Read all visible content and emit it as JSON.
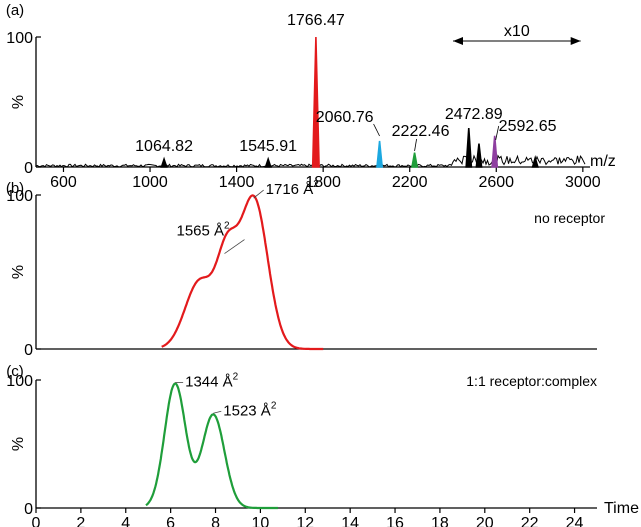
{
  "chart_data": [
    {
      "panel_label": "(a)",
      "type": "line",
      "title": "",
      "xlabel": "m/z",
      "ylabel": "%",
      "xlim": [
        510,
        3010
      ],
      "ylim": [
        0,
        100
      ],
      "x_ticks": [
        "600",
        "1000",
        "1400",
        "1800",
        "2200",
        "2600",
        "3000"
      ],
      "y_ticks": [
        "0",
        "100"
      ],
      "baseline_noise": 3,
      "zoom_annotation": {
        "label": "x10",
        "x_start": 2400,
        "x_end": 2990
      },
      "series": [
        {
          "color": "#000000",
          "peaks": [
            {
              "x": 1064.82,
              "y": 6,
              "label": "1064.82"
            },
            {
              "x": 1545.91,
              "y": 6,
              "label": "1545.91"
            },
            {
              "x": 2472.89,
              "y": 30,
              "label": "2472.89"
            },
            {
              "x": 2520,
              "y": 18
            },
            {
              "x": 2780,
              "y": 7
            }
          ]
        },
        {
          "color": "#e31a1c",
          "peaks": [
            {
              "x": 1766.47,
              "y": 100,
              "label": "1766.47"
            }
          ]
        },
        {
          "color": "#1ca8e0",
          "peaks": [
            {
              "x": 2060.76,
              "y": 20,
              "label": "2060.76"
            }
          ]
        },
        {
          "color": "#1f9e3a",
          "peaks": [
            {
              "x": 2222.46,
              "y": 11,
              "label": "2222.46"
            }
          ]
        },
        {
          "color": "#8e3fa0",
          "peaks": [
            {
              "x": 2592.65,
              "y": 24,
              "label": "2592.65"
            }
          ]
        }
      ]
    },
    {
      "panel_label": "(b)",
      "type": "line",
      "title": "no receptor",
      "xlabel": "",
      "ylabel": "%",
      "xlim": [
        0,
        25
      ],
      "ylim": [
        0,
        100
      ],
      "y_ticks": [
        "0",
        "100"
      ],
      "series": [
        {
          "color": "#e31a1c",
          "x_range": [
            5.6,
            12.8
          ],
          "components": [
            {
              "center": 7.3,
              "height": 44,
              "width": 0.65
            },
            {
              "center": 8.5,
              "height": 52,
              "width": 0.45
            },
            {
              "center": 9.7,
              "height": 98,
              "width": 0.62
            }
          ],
          "annotations": [
            {
              "x": 8.4,
              "y": 62,
              "label": "1565 Å",
              "sup": "2"
            },
            {
              "x": 9.7,
              "y": 98,
              "label": "1716 Å",
              "sup": "2"
            }
          ]
        }
      ]
    },
    {
      "panel_label": "(c)",
      "type": "line",
      "title": "1:1 receptor:complex",
      "xlabel": "Time",
      "ylabel": "%",
      "xlim": [
        0,
        25
      ],
      "ylim": [
        0,
        100
      ],
      "x_ticks": [
        "0",
        "2",
        "4",
        "6",
        "8",
        "10",
        "12",
        "14",
        "16",
        "18",
        "20",
        "22",
        "24"
      ],
      "y_ticks": [
        "0",
        "100"
      ],
      "series": [
        {
          "color": "#1f9e3a",
          "x_range": [
            4.9,
            10.8
          ],
          "components": [
            {
              "center": 6.2,
              "height": 97,
              "width": 0.47
            },
            {
              "center": 7.9,
              "height": 73,
              "width": 0.5
            }
          ],
          "annotations": [
            {
              "x": 6.2,
              "y": 98,
              "label": "1344 Å",
              "sup": "2"
            },
            {
              "x": 7.9,
              "y": 74,
              "label": "1523 Å",
              "sup": "2"
            }
          ]
        }
      ]
    }
  ]
}
